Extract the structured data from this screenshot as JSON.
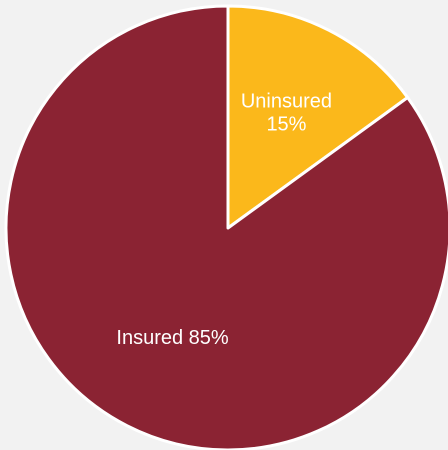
{
  "chart_data": {
    "type": "pie",
    "start_angle_deg": 0,
    "direction": "clockwise",
    "slices": [
      {
        "label": "Uninsured",
        "value": 15,
        "display_value": "15%",
        "color": "#fbb81b",
        "label_style": "two-line"
      },
      {
        "label": "Insured",
        "value": 85,
        "display_value": "85%",
        "color": "#8b2333",
        "label_style": "one-line"
      }
    ],
    "slice_border_color": "#ffffff",
    "background_color": "#f2f2f2"
  }
}
